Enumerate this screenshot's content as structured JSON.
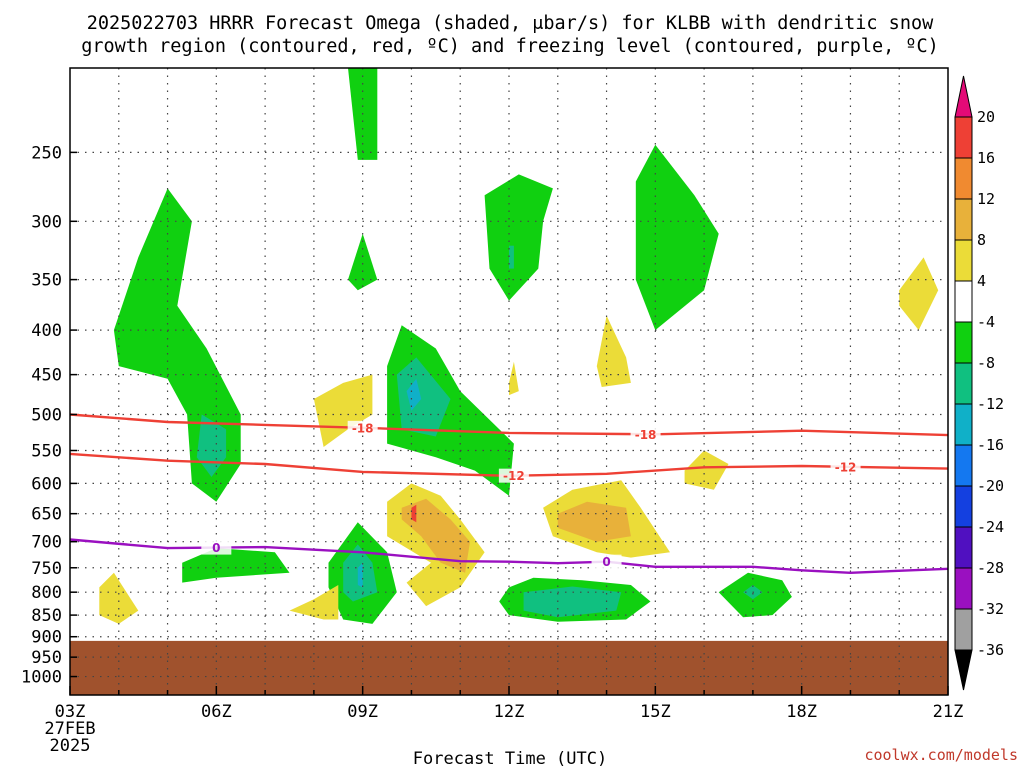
{
  "title_line1": "2025022703 HRRR Forecast Omega (shaded, μbar/s) for KLBB with dendritic snow",
  "title_line2": "growth region (contoured, red, ºC) and freezing level (contoured, purple, ºC)",
  "credit": "coolwx.com/models",
  "colors": {
    "ground": "#a0522d",
    "dgz_contour": "#ee4035",
    "freezing_contour": "#9a10c0",
    "grid": "#444444"
  },
  "chart_data": {
    "type": "heatmap",
    "xlabel": "Forecast Time (UTC)",
    "ylabel": "",
    "x_ticks": [
      "03Z",
      "06Z",
      "09Z",
      "12Z",
      "15Z",
      "18Z",
      "21Z"
    ],
    "x_tick_hours": [
      3,
      6,
      9,
      12,
      15,
      18,
      21
    ],
    "x_start_label": [
      "27FEB",
      "2025"
    ],
    "xlim_hours": [
      3,
      21
    ],
    "y_ticks": [
      250,
      300,
      350,
      400,
      450,
      500,
      550,
      600,
      650,
      700,
      750,
      800,
      850,
      900,
      950,
      1000
    ],
    "ylim_mb": [
      1050,
      200
    ],
    "y_log_scale": true,
    "colorbar": {
      "labels": [
        "20",
        "16",
        "12",
        "8",
        "4",
        "-4",
        "-8",
        "-12",
        "-16",
        "-20",
        "-24",
        "-28",
        "-32",
        "-36"
      ],
      "colors": [
        "#e40a77",
        "#ee4035",
        "#f08a30",
        "#e8b13a",
        "#ebdc38",
        "#ffffff",
        "#10d010",
        "#10c080",
        "#10b0c8",
        "#1478f0",
        "#1440e0",
        "#5010c0",
        "#9a10c0",
        "#a0a0a0",
        "#000000"
      ]
    },
    "surface_pressure_mb": 910,
    "contours": [
      {
        "label": "-18",
        "color": "#ee4035",
        "points": [
          [
            3,
            500
          ],
          [
            5,
            510
          ],
          [
            7,
            514
          ],
          [
            9,
            518
          ],
          [
            12,
            525
          ],
          [
            15,
            527
          ],
          [
            18,
            522
          ],
          [
            21,
            528
          ]
        ],
        "label_hours": [
          9.0,
          14.8
        ]
      },
      {
        "label": "-12",
        "color": "#ee4035",
        "points": [
          [
            3,
            555
          ],
          [
            5,
            565
          ],
          [
            7,
            570
          ],
          [
            9,
            582
          ],
          [
            12,
            588
          ],
          [
            14,
            585
          ],
          [
            16,
            575
          ],
          [
            18,
            573
          ],
          [
            21,
            577
          ]
        ],
        "label_hours": [
          12.1,
          18.9
        ]
      },
      {
        "label": "0",
        "color": "#9a10c0",
        "points": [
          [
            3,
            696
          ],
          [
            5,
            712
          ],
          [
            7,
            710
          ],
          [
            9,
            720
          ],
          [
            11,
            737
          ],
          [
            12,
            738
          ],
          [
            13,
            741
          ],
          [
            14,
            738
          ],
          [
            15,
            748
          ],
          [
            17,
            748
          ],
          [
            18,
            755
          ],
          [
            19,
            760
          ],
          [
            21,
            752
          ]
        ],
        "label_hours": [
          6.0,
          14.0
        ]
      }
    ],
    "omega_regions": [
      {
        "value": -6,
        "points": [
          [
            3.9,
            400
          ],
          [
            4.4,
            330
          ],
          [
            5.0,
            275
          ],
          [
            5.5,
            300
          ],
          [
            5.2,
            375
          ],
          [
            5.8,
            420
          ],
          [
            6.5,
            500
          ],
          [
            6.5,
            570
          ],
          [
            6.0,
            630
          ],
          [
            5.5,
            600
          ],
          [
            5.4,
            500
          ],
          [
            5.0,
            455
          ],
          [
            4.0,
            440
          ],
          [
            3.9,
            400
          ]
        ]
      },
      {
        "value": -10,
        "points": [
          [
            5.7,
            500
          ],
          [
            6.2,
            520
          ],
          [
            6.2,
            560
          ],
          [
            5.9,
            590
          ],
          [
            5.6,
            560
          ],
          [
            5.7,
            500
          ]
        ]
      },
      {
        "value": -6,
        "points": [
          [
            8.7,
            200
          ],
          [
            9.3,
            200
          ],
          [
            9.3,
            255
          ],
          [
            8.9,
            255
          ],
          [
            8.7,
            200
          ]
        ]
      },
      {
        "value": -6,
        "points": [
          [
            8.7,
            350
          ],
          [
            9.0,
            310
          ],
          [
            9.3,
            350
          ],
          [
            8.9,
            360
          ],
          [
            8.7,
            350
          ]
        ]
      },
      {
        "value": -6,
        "points": [
          [
            9.5,
            440
          ],
          [
            9.8,
            395
          ],
          [
            10.5,
            420
          ],
          [
            11.0,
            470
          ],
          [
            12.1,
            540
          ],
          [
            12.0,
            620
          ],
          [
            11.3,
            580
          ],
          [
            10.5,
            560
          ],
          [
            9.5,
            540
          ],
          [
            9.5,
            440
          ]
        ]
      },
      {
        "value": -10,
        "points": [
          [
            9.7,
            450
          ],
          [
            10.1,
            430
          ],
          [
            10.8,
            480
          ],
          [
            10.5,
            530
          ],
          [
            9.8,
            520
          ],
          [
            9.7,
            450
          ]
        ]
      },
      {
        "value": -16,
        "points": [
          [
            9.9,
            470
          ],
          [
            10.1,
            455
          ],
          [
            10.2,
            480
          ],
          [
            10.0,
            495
          ],
          [
            9.9,
            470
          ]
        ]
      },
      {
        "value": -6,
        "points": [
          [
            11.5,
            280
          ],
          [
            12.2,
            265
          ],
          [
            12.9,
            275
          ],
          [
            12.7,
            300
          ],
          [
            12.6,
            340
          ],
          [
            12.0,
            370
          ],
          [
            11.6,
            340
          ],
          [
            11.5,
            280
          ]
        ]
      },
      {
        "value": -10,
        "points": [
          [
            12.0,
            320
          ],
          [
            12.1,
            320
          ],
          [
            12.1,
            340
          ],
          [
            12.0,
            340
          ],
          [
            12.0,
            320
          ]
        ]
      },
      {
        "value": -6,
        "points": [
          [
            14.6,
            270
          ],
          [
            15.0,
            245
          ],
          [
            15.8,
            280
          ],
          [
            16.3,
            310
          ],
          [
            16.0,
            360
          ],
          [
            15.0,
            400
          ],
          [
            14.6,
            350
          ],
          [
            14.6,
            270
          ]
        ]
      },
      {
        "value": -6,
        "points": [
          [
            5.3,
            740
          ],
          [
            6.0,
            712
          ],
          [
            7.2,
            720
          ],
          [
            7.5,
            760
          ],
          [
            6.0,
            770
          ],
          [
            5.3,
            780
          ],
          [
            5.3,
            740
          ]
        ]
      },
      {
        "value": -6,
        "points": [
          [
            8.3,
            740
          ],
          [
            8.9,
            665
          ],
          [
            9.5,
            720
          ],
          [
            9.7,
            800
          ],
          [
            9.2,
            870
          ],
          [
            8.6,
            860
          ],
          [
            8.3,
            790
          ],
          [
            8.3,
            740
          ]
        ]
      },
      {
        "value": -10,
        "points": [
          [
            8.6,
            740
          ],
          [
            8.9,
            705
          ],
          [
            9.2,
            740
          ],
          [
            9.3,
            800
          ],
          [
            8.8,
            820
          ],
          [
            8.6,
            800
          ],
          [
            8.6,
            740
          ]
        ]
      },
      {
        "value": -16,
        "points": [
          [
            8.9,
            750
          ],
          [
            9.0,
            740
          ],
          [
            9.0,
            790
          ],
          [
            8.9,
            785
          ],
          [
            8.9,
            750
          ]
        ]
      },
      {
        "value": -6,
        "points": [
          [
            12.0,
            790
          ],
          [
            12.5,
            770
          ],
          [
            13.5,
            775
          ],
          [
            14.5,
            785
          ],
          [
            14.9,
            820
          ],
          [
            14.4,
            860
          ],
          [
            13.0,
            865
          ],
          [
            12.0,
            850
          ],
          [
            11.8,
            820
          ],
          [
            12.0,
            790
          ]
        ]
      },
      {
        "value": -10,
        "points": [
          [
            12.3,
            800
          ],
          [
            13.3,
            788
          ],
          [
            14.3,
            800
          ],
          [
            14.2,
            840
          ],
          [
            13.0,
            855
          ],
          [
            12.3,
            840
          ],
          [
            12.3,
            800
          ]
        ]
      },
      {
        "value": -6,
        "points": [
          [
            16.3,
            800
          ],
          [
            16.9,
            760
          ],
          [
            17.6,
            775
          ],
          [
            17.8,
            810
          ],
          [
            17.4,
            850
          ],
          [
            16.8,
            855
          ],
          [
            16.3,
            800
          ]
        ]
      },
      {
        "value": -10,
        "points": [
          [
            16.8,
            800
          ],
          [
            17.0,
            785
          ],
          [
            17.2,
            800
          ],
          [
            17.0,
            815
          ],
          [
            16.8,
            800
          ]
        ]
      },
      {
        "value": 5,
        "points": [
          [
            8.0,
            480
          ],
          [
            8.6,
            460
          ],
          [
            9.2,
            450
          ],
          [
            9.2,
            500
          ],
          [
            8.7,
            520
          ],
          [
            8.2,
            545
          ],
          [
            8.0,
            480
          ]
        ]
      },
      {
        "value": 5,
        "points": [
          [
            12.0,
            460
          ],
          [
            12.1,
            435
          ],
          [
            12.2,
            470
          ],
          [
            12.0,
            475
          ],
          [
            12.0,
            460
          ]
        ]
      },
      {
        "value": 5,
        "points": [
          [
            13.8,
            440
          ],
          [
            14.0,
            385
          ],
          [
            14.4,
            430
          ],
          [
            14.5,
            460
          ],
          [
            13.9,
            465
          ],
          [
            13.8,
            440
          ]
        ]
      },
      {
        "value": 5,
        "points": [
          [
            9.5,
            630
          ],
          [
            10.0,
            600
          ],
          [
            10.6,
            620
          ],
          [
            11.0,
            660
          ],
          [
            11.5,
            720
          ],
          [
            11.0,
            790
          ],
          [
            10.3,
            830
          ],
          [
            9.9,
            780
          ],
          [
            10.4,
            740
          ],
          [
            9.5,
            690
          ],
          [
            9.5,
            630
          ]
        ]
      },
      {
        "value": 9,
        "points": [
          [
            9.8,
            640
          ],
          [
            10.3,
            625
          ],
          [
            10.8,
            660
          ],
          [
            11.2,
            700
          ],
          [
            11.1,
            760
          ],
          [
            10.6,
            740
          ],
          [
            10.2,
            690
          ],
          [
            9.8,
            660
          ],
          [
            9.8,
            640
          ]
        ]
      },
      {
        "value": 18,
        "points": [
          [
            10.0,
            640
          ],
          [
            10.1,
            635
          ],
          [
            10.1,
            665
          ],
          [
            10.0,
            660
          ],
          [
            10.0,
            640
          ]
        ]
      },
      {
        "value": 5,
        "points": [
          [
            12.7,
            640
          ],
          [
            13.3,
            610
          ],
          [
            14.3,
            595
          ],
          [
            14.7,
            640
          ],
          [
            15.3,
            720
          ],
          [
            14.5,
            730
          ],
          [
            13.8,
            720
          ],
          [
            12.9,
            690
          ],
          [
            12.7,
            640
          ]
        ]
      },
      {
        "value": 9,
        "points": [
          [
            13.0,
            650
          ],
          [
            13.6,
            630
          ],
          [
            14.4,
            640
          ],
          [
            14.5,
            690
          ],
          [
            13.8,
            700
          ],
          [
            13.0,
            675
          ],
          [
            13.0,
            650
          ]
        ]
      },
      {
        "value": 5,
        "points": [
          [
            15.6,
            580
          ],
          [
            16.0,
            550
          ],
          [
            16.5,
            570
          ],
          [
            16.2,
            610
          ],
          [
            15.6,
            600
          ],
          [
            15.6,
            580
          ]
        ]
      },
      {
        "value": 5,
        "points": [
          [
            20.0,
            360
          ],
          [
            20.5,
            330
          ],
          [
            20.8,
            360
          ],
          [
            20.4,
            400
          ],
          [
            20.0,
            375
          ],
          [
            20.0,
            360
          ]
        ]
      },
      {
        "value": 5,
        "points": [
          [
            3.6,
            790
          ],
          [
            3.9,
            760
          ],
          [
            4.4,
            840
          ],
          [
            4.0,
            870
          ],
          [
            3.6,
            850
          ],
          [
            3.6,
            790
          ]
        ]
      },
      {
        "value": 5,
        "points": [
          [
            7.5,
            840
          ],
          [
            8.0,
            815
          ],
          [
            8.5,
            785
          ],
          [
            8.5,
            860
          ],
          [
            8.2,
            860
          ],
          [
            7.5,
            840
          ]
        ]
      }
    ]
  }
}
